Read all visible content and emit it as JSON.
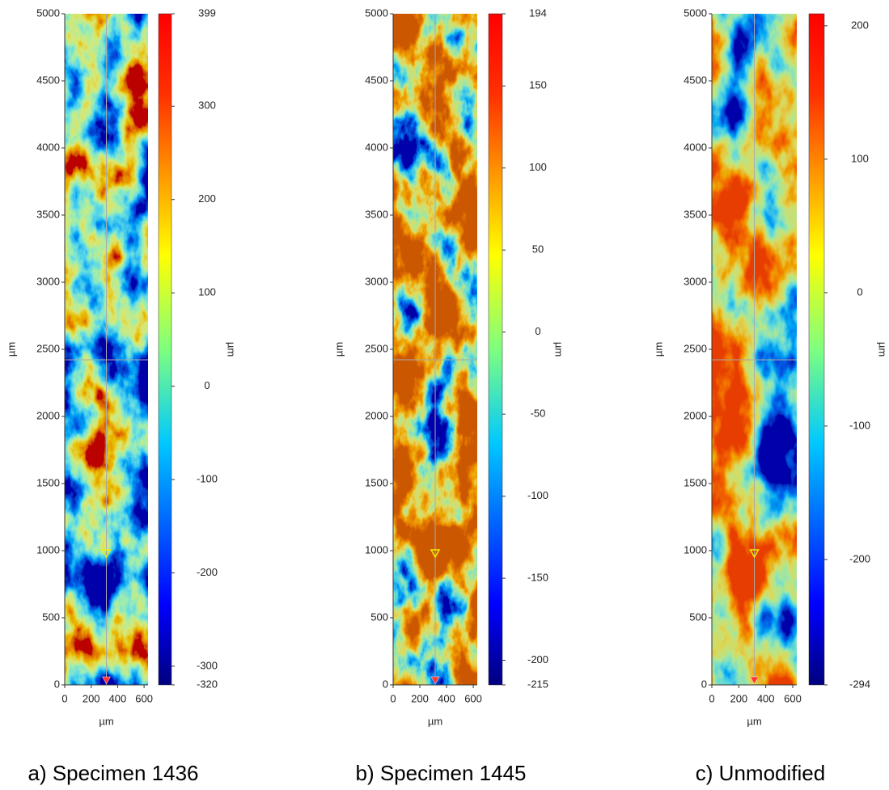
{
  "chart_data": [
    {
      "type": "heatmap",
      "title": "a) Specimen 1436",
      "xlabel": "µm",
      "ylabel": "µm",
      "clabel": "µm",
      "xlim": [
        0,
        630
      ],
      "xticks": [
        0,
        200,
        400,
        600
      ],
      "ylim": [
        0,
        5000
      ],
      "yticks": [
        0,
        500,
        1000,
        1500,
        2000,
        2500,
        3000,
        3500,
        4000,
        4500,
        5000
      ],
      "clim": [
        -320,
        399
      ],
      "cticks": [
        399,
        300,
        200,
        100,
        0,
        -100,
        -200,
        -300,
        -320
      ]
    },
    {
      "type": "heatmap",
      "title": "b) Specimen 1445",
      "xlabel": "µm",
      "ylabel": "µm",
      "clabel": "µm",
      "xlim": [
        0,
        630
      ],
      "xticks": [
        0,
        200,
        400,
        600
      ],
      "ylim": [
        0,
        5000
      ],
      "yticks": [
        0,
        500,
        1000,
        1500,
        2000,
        2500,
        3000,
        3500,
        4000,
        4500,
        5000
      ],
      "clim": [
        -215,
        194
      ],
      "cticks": [
        194,
        150,
        100,
        50,
        0,
        -50,
        -100,
        -150,
        -200,
        -215
      ]
    },
    {
      "type": "heatmap",
      "title": "c) Unmodified",
      "xlabel": "µm",
      "ylabel": "µm",
      "clabel": "µm",
      "xlim": [
        0,
        630
      ],
      "xticks": [
        0,
        200,
        400,
        600
      ],
      "ylim": [
        0,
        5000
      ],
      "yticks": [
        0,
        500,
        1000,
        1500,
        2000,
        2500,
        3000,
        3500,
        4000,
        4500,
        5000
      ],
      "clim": [
        -294,
        209
      ],
      "cticks": [
        200,
        100,
        0,
        -100,
        -200,
        -294
      ]
    }
  ]
}
